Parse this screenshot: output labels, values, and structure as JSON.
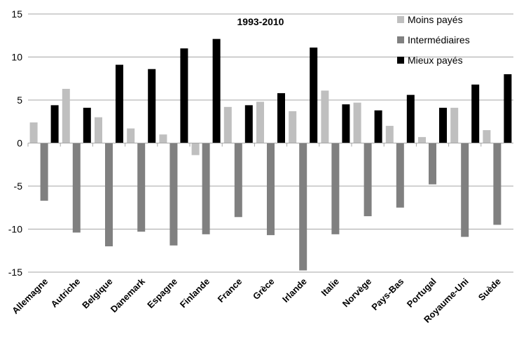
{
  "chart_data": {
    "type": "bar",
    "title": "1993-2010",
    "xlabel": "",
    "ylabel": "",
    "ylim": [
      -15,
      15
    ],
    "yticks": [
      -15,
      -10,
      -5,
      0,
      5,
      10,
      15
    ],
    "grid": "horizontal",
    "legend_position": "top-right",
    "categories": [
      "Allemagne",
      "Autriche",
      "Belgique",
      "Danemark",
      "Espagne",
      "Finlande",
      "France",
      "Grèce",
      "Irlande",
      "Italie",
      "Norvège",
      "Pays-Bas",
      "Portugal",
      "Royaume-Uni",
      "Suède"
    ],
    "series": [
      {
        "name": "Moins payés",
        "color": "#bfbfbf",
        "values": [
          2.4,
          6.3,
          3.0,
          1.7,
          1.0,
          -1.4,
          4.2,
          4.8,
          3.7,
          6.1,
          4.7,
          2.0,
          0.7,
          4.1,
          1.5
        ]
      },
      {
        "name": "Intermédiaires",
        "color": "#808080",
        "values": [
          -6.7,
          -10.4,
          -12.0,
          -10.3,
          -11.9,
          -10.6,
          -8.6,
          -10.7,
          -14.8,
          -10.6,
          -8.5,
          -7.5,
          -4.8,
          -10.9,
          -9.5
        ]
      },
      {
        "name": "Mieux payés",
        "color": "#000000",
        "values": [
          4.4,
          4.1,
          9.1,
          8.6,
          11.0,
          12.1,
          4.4,
          5.8,
          11.1,
          4.5,
          3.8,
          5.6,
          4.1,
          6.8,
          8.0
        ]
      }
    ]
  }
}
